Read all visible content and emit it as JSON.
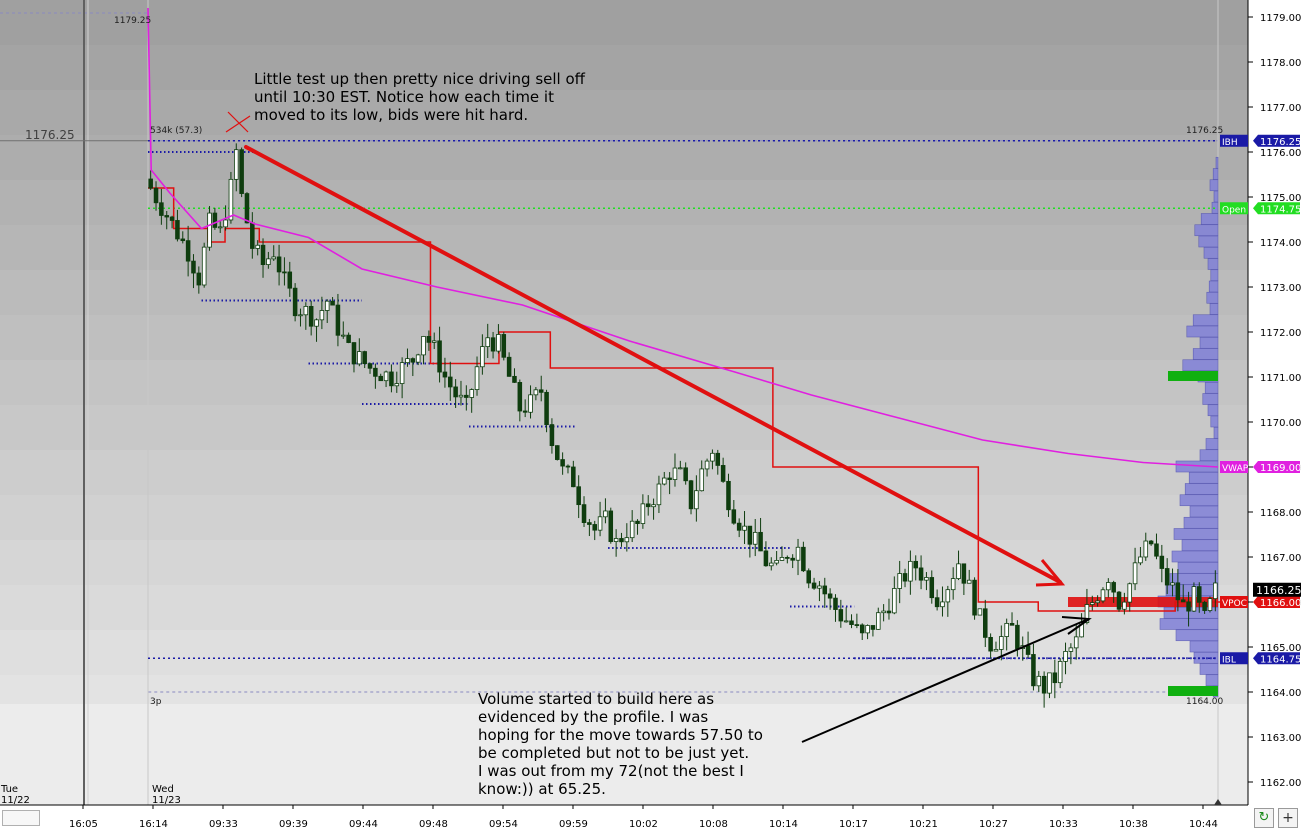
{
  "chart_data": {
    "type": "candlestick",
    "ylim": [
      1161.5,
      1179.2
    ],
    "y_ticks": [
      "1179.00",
      "1178.00",
      "1177.00",
      "1176.00",
      "1175.00",
      "1174.00",
      "1173.00",
      "1172.00",
      "1171.00",
      "1170.00",
      "1169.00",
      "1168.00",
      "1167.00",
      "1166.00",
      "1165.00",
      "1164.00",
      "1163.00",
      "1162.00"
    ],
    "x_ticks": [
      "16:05",
      "16:14",
      "09:33",
      "09:39",
      "09:44",
      "09:48",
      "09:54",
      "09:59",
      "10:02",
      "10:08",
      "10:14",
      "10:17",
      "10:21",
      "10:27",
      "10:33",
      "10:38",
      "10:44"
    ],
    "date_labels": [
      {
        "day": "Tue",
        "date": "11/22"
      },
      {
        "day": "Wed",
        "date": "11/23"
      }
    ],
    "crosshair_price": "1176.25",
    "top_price_label": "1179.25",
    "session_labels": {
      "top_left": "534k (57.3)",
      "top_right": "1176.25",
      "bottom_left": "3p",
      "bottom_right": "1164.00"
    },
    "levels": [
      {
        "name": "IBH",
        "price": 1176.25,
        "label": "IBH",
        "value_label": "1176.25",
        "color": "#1a1aa6"
      },
      {
        "name": "Open",
        "price": 1174.75,
        "label": "Open",
        "value_label": "1174.75",
        "color": "#22dd22"
      },
      {
        "name": "VWAP",
        "price": 1169.0,
        "label": "VWAP",
        "value_label": "1169.00",
        "color": "#e020e0"
      },
      {
        "name": "VPOC",
        "price": 1166.0,
        "label": "VPOC",
        "value_label": "1166.00",
        "color": "#e01010"
      },
      {
        "name": "IBL",
        "price": 1164.75,
        "label": "IBL",
        "value_label": "1164.75",
        "color": "#1a1aa6"
      }
    ],
    "last_price": "1166.25",
    "close_path": [
      [
        0.0,
        1175.4
      ],
      [
        0.02,
        1174.6
      ],
      [
        0.04,
        1173.8
      ],
      [
        0.05,
        1173.2
      ],
      [
        0.06,
        1174.4
      ],
      [
        0.07,
        1174.2
      ],
      [
        0.08,
        1175.2
      ],
      [
        0.085,
        1176.0
      ],
      [
        0.09,
        1175.0
      ],
      [
        0.1,
        1173.9
      ],
      [
        0.11,
        1173.5
      ],
      [
        0.12,
        1173.8
      ],
      [
        0.13,
        1173.1
      ],
      [
        0.14,
        1172.6
      ],
      [
        0.16,
        1172.3
      ],
      [
        0.17,
        1172.7
      ],
      [
        0.18,
        1172.1
      ],
      [
        0.19,
        1171.6
      ],
      [
        0.21,
        1171.2
      ],
      [
        0.23,
        1171.0
      ],
      [
        0.25,
        1171.4
      ],
      [
        0.26,
        1172.0
      ],
      [
        0.27,
        1171.6
      ],
      [
        0.28,
        1171.0
      ],
      [
        0.29,
        1170.6
      ],
      [
        0.3,
        1170.3
      ],
      [
        0.31,
        1171.2
      ],
      [
        0.32,
        1171.9
      ],
      [
        0.33,
        1171.7
      ],
      [
        0.34,
        1171.0
      ],
      [
        0.35,
        1170.3
      ],
      [
        0.36,
        1170.4
      ],
      [
        0.37,
        1170.7
      ],
      [
        0.38,
        1169.6
      ],
      [
        0.39,
        1168.9
      ],
      [
        0.4,
        1168.7
      ],
      [
        0.41,
        1168.0
      ],
      [
        0.42,
        1167.6
      ],
      [
        0.43,
        1167.8
      ],
      [
        0.44,
        1167.3
      ],
      [
        0.45,
        1167.6
      ],
      [
        0.46,
        1167.7
      ],
      [
        0.47,
        1168.2
      ],
      [
        0.48,
        1168.5
      ],
      [
        0.49,
        1168.9
      ],
      [
        0.5,
        1168.8
      ],
      [
        0.51,
        1168.2
      ],
      [
        0.52,
        1168.9
      ],
      [
        0.53,
        1169.4
      ],
      [
        0.54,
        1168.6
      ],
      [
        0.55,
        1168.0
      ],
      [
        0.56,
        1167.6
      ],
      [
        0.57,
        1167.3
      ],
      [
        0.58,
        1166.9
      ],
      [
        0.59,
        1166.7
      ],
      [
        0.6,
        1167.1
      ],
      [
        0.61,
        1167.2
      ],
      [
        0.62,
        1166.6
      ],
      [
        0.63,
        1166.4
      ],
      [
        0.64,
        1166.0
      ],
      [
        0.65,
        1165.7
      ],
      [
        0.66,
        1165.5
      ],
      [
        0.67,
        1165.2
      ],
      [
        0.68,
        1165.5
      ],
      [
        0.69,
        1165.8
      ],
      [
        0.7,
        1166.2
      ],
      [
        0.71,
        1166.6
      ],
      [
        0.72,
        1166.8
      ],
      [
        0.73,
        1166.5
      ],
      [
        0.74,
        1166.1
      ],
      [
        0.75,
        1166.4
      ],
      [
        0.76,
        1166.9
      ],
      [
        0.77,
        1166.3
      ],
      [
        0.78,
        1165.6
      ],
      [
        0.79,
        1165.1
      ],
      [
        0.8,
        1165.2
      ],
      [
        0.81,
        1165.4
      ],
      [
        0.82,
        1164.9
      ],
      [
        0.83,
        1164.3
      ],
      [
        0.84,
        1164.1
      ],
      [
        0.85,
        1164.3
      ],
      [
        0.86,
        1164.8
      ],
      [
        0.87,
        1165.1
      ],
      [
        0.88,
        1165.8
      ],
      [
        0.89,
        1166.2
      ],
      [
        0.9,
        1166.6
      ],
      [
        0.91,
        1166.0
      ],
      [
        0.92,
        1166.4
      ],
      [
        0.93,
        1167.0
      ],
      [
        0.94,
        1167.3
      ],
      [
        0.95,
        1166.6
      ],
      [
        0.96,
        1166.3
      ],
      [
        0.97,
        1165.9
      ],
      [
        0.98,
        1166.1
      ],
      [
        0.99,
        1165.6
      ],
      [
        1.0,
        1166.25
      ]
    ],
    "vwap_path": [
      [
        0.0,
        1179.2
      ],
      [
        0.003,
        1175.6
      ],
      [
        0.02,
        1175.1
      ],
      [
        0.05,
        1174.3
      ],
      [
        0.08,
        1174.6
      ],
      [
        0.1,
        1174.4
      ],
      [
        0.15,
        1174.1
      ],
      [
        0.2,
        1173.4
      ],
      [
        0.27,
        1173.0
      ],
      [
        0.35,
        1172.6
      ],
      [
        0.45,
        1171.8
      ],
      [
        0.55,
        1171.1
      ],
      [
        0.62,
        1170.6
      ],
      [
        0.7,
        1170.1
      ],
      [
        0.78,
        1169.6
      ],
      [
        0.86,
        1169.3
      ],
      [
        0.93,
        1169.1
      ],
      [
        1.0,
        1169.0
      ]
    ],
    "ib_step_path": [
      [
        0.0,
        1175.2
      ],
      [
        0.03,
        1175.2
      ],
      [
        0.03,
        1174.3
      ],
      [
        0.07,
        1174.3
      ],
      [
        0.07,
        1174.0
      ],
      [
        0.09,
        1174.0
      ],
      [
        0.09,
        1174.3
      ],
      [
        0.13,
        1174.3
      ],
      [
        0.13,
        1174.0
      ],
      [
        0.33,
        1174.0
      ],
      [
        0.33,
        1171.3
      ],
      [
        0.41,
        1171.3
      ],
      [
        0.41,
        1172.0
      ],
      [
        0.47,
        1172.0
      ],
      [
        0.47,
        1171.2
      ],
      [
        0.73,
        1171.2
      ],
      [
        0.73,
        1169.0
      ],
      [
        0.97,
        1169.0
      ],
      [
        0.97,
        1166.0
      ],
      [
        1.04,
        1166.0
      ],
      [
        1.04,
        1165.8
      ],
      [
        1.2,
        1165.8
      ],
      [
        1.2,
        1166.0
      ],
      [
        1.3,
        1166.0
      ]
    ],
    "support_levels": [
      {
        "price": 1176.0,
        "x0": 0.0,
        "x1": 0.1
      },
      {
        "price": 1172.7,
        "x0": 0.05,
        "x1": 0.2
      },
      {
        "price": 1171.3,
        "x0": 0.15,
        "x1": 0.28
      },
      {
        "price": 1170.4,
        "x0": 0.2,
        "x1": 0.3
      },
      {
        "price": 1169.9,
        "x0": 0.3,
        "x1": 0.4
      },
      {
        "price": 1167.2,
        "x0": 0.43,
        "x1": 0.6
      },
      {
        "price": 1165.9,
        "x0": 0.6,
        "x1": 0.66
      },
      {
        "price": 1164.75,
        "x0": 0.66,
        "x1": 1.0
      }
    ],
    "volume_profile": [
      {
        "price": 1175.75,
        "v": 0.05
      },
      {
        "price": 1175.5,
        "v": 0.12
      },
      {
        "price": 1175.25,
        "v": 0.2
      },
      {
        "price": 1175.0,
        "v": 0.1
      },
      {
        "price": 1174.75,
        "v": 0.15
      },
      {
        "price": 1174.5,
        "v": 0.42
      },
      {
        "price": 1174.25,
        "v": 0.58
      },
      {
        "price": 1174.0,
        "v": 0.48
      },
      {
        "price": 1173.75,
        "v": 0.35
      },
      {
        "price": 1173.5,
        "v": 0.25
      },
      {
        "price": 1173.25,
        "v": 0.18
      },
      {
        "price": 1173.0,
        "v": 0.22
      },
      {
        "price": 1172.75,
        "v": 0.28
      },
      {
        "price": 1172.5,
        "v": 0.2
      },
      {
        "price": 1172.25,
        "v": 0.62
      },
      {
        "price": 1172.0,
        "v": 0.78
      },
      {
        "price": 1171.75,
        "v": 0.45
      },
      {
        "price": 1171.5,
        "v": 0.62
      },
      {
        "price": 1171.25,
        "v": 0.88
      },
      {
        "price": 1171.0,
        "v": 0.5
      },
      {
        "price": 1170.75,
        "v": 0.32
      },
      {
        "price": 1170.5,
        "v": 0.38
      },
      {
        "price": 1170.25,
        "v": 0.25
      },
      {
        "price": 1170.0,
        "v": 0.18
      },
      {
        "price": 1169.75,
        "v": 0.1
      },
      {
        "price": 1169.5,
        "v": 0.3
      },
      {
        "price": 1169.25,
        "v": 0.45
      },
      {
        "price": 1169.0,
        "v": 1.05
      },
      {
        "price": 1168.75,
        "v": 0.72
      },
      {
        "price": 1168.5,
        "v": 0.82
      },
      {
        "price": 1168.25,
        "v": 0.95
      },
      {
        "price": 1168.0,
        "v": 0.7
      },
      {
        "price": 1167.75,
        "v": 0.85
      },
      {
        "price": 1167.5,
        "v": 1.1
      },
      {
        "price": 1167.25,
        "v": 0.9
      },
      {
        "price": 1167.0,
        "v": 1.15
      },
      {
        "price": 1166.75,
        "v": 1.0
      },
      {
        "price": 1166.5,
        "v": 1.2
      },
      {
        "price": 1166.25,
        "v": 1.3
      },
      {
        "price": 1166.0,
        "v": 1.5
      },
      {
        "price": 1165.75,
        "v": 1.35
      },
      {
        "price": 1165.5,
        "v": 1.45
      },
      {
        "price": 1165.25,
        "v": 1.05
      },
      {
        "price": 1165.0,
        "v": 0.7
      },
      {
        "price": 1164.75,
        "v": 0.6
      },
      {
        "price": 1164.5,
        "v": 0.45
      },
      {
        "price": 1164.25,
        "v": 0.3
      },
      {
        "price": 1164.0,
        "v": 0.12
      }
    ],
    "profile_markers": [
      {
        "price": 1171.0,
        "color": "#10b010"
      },
      {
        "price": 1164.0,
        "color": "#10b010"
      }
    ],
    "colors": {
      "candle_up": "#ffffff",
      "candle_down": "#0f3d0f",
      "candle_wick": "#0f3d0f",
      "vwap": "#e020e0",
      "ib_step": "#e01010",
      "support": "#1a1aa6",
      "trend_arrow": "#e01010",
      "annotation_arrow": "#000000",
      "profile": "#8080d8",
      "profile_border": "#5050b0"
    }
  },
  "annotations": {
    "top": "Little test up then pretty nice driving sell off\nuntil 10:30 EST. Notice how each time it\nmoved to its low, bids were hit hard.",
    "bottom": "Volume started to build here as\nevidenced by the profile. I was\nhoping for the move towards 57.50 to\nbe completed but not to be just yet.\nI was out from my 72(not the best I\nknow:)) at 65.25."
  },
  "controls": {
    "refresh_icon": "↻",
    "add_icon": "+"
  }
}
